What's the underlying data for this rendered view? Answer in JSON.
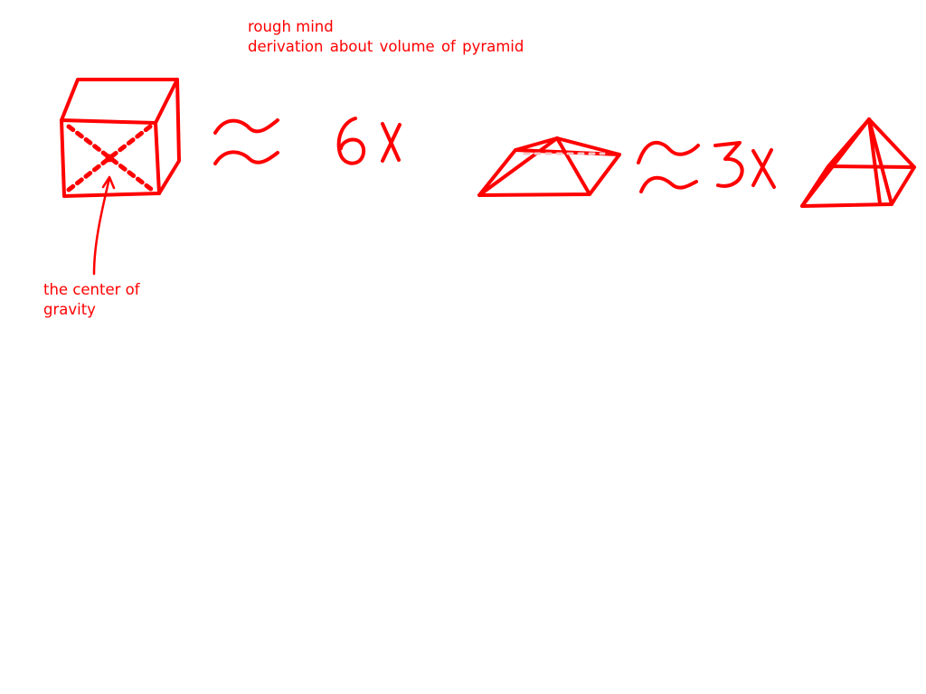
{
  "colors": {
    "ink": "#ff0000",
    "background": "#ffffff",
    "faint": "#f4c4c4"
  },
  "title": {
    "line1": "rough mind",
    "line2": "derivation  about    volume of pyramid"
  },
  "cube": {
    "annotation_line1": "the center of",
    "annotation_line2": "gravity"
  },
  "equation_1": {
    "symbol": "≈",
    "label": "6X"
  },
  "equation_2": {
    "symbol": "≈",
    "label": "3X"
  }
}
